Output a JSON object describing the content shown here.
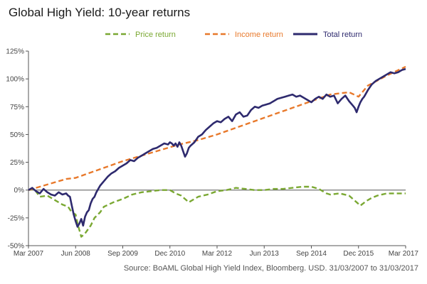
{
  "chart_data": {
    "type": "line",
    "title": "Global High Yield: 10-year returns",
    "source": "Source: BoAML Global High Yield Index, Bloomberg.  USD. 31/03/2007 to 31/03/2017",
    "xlim": [
      0,
      10
    ],
    "ylim": [
      -50,
      125
    ],
    "x_ticks": [
      {
        "x": 0,
        "label": "Mar 2007"
      },
      {
        "x": 1.25,
        "label": "Jun 2008"
      },
      {
        "x": 2.5,
        "label": "Sep 2009"
      },
      {
        "x": 3.75,
        "label": "Dec 2010"
      },
      {
        "x": 5,
        "label": "Mar 2012"
      },
      {
        "x": 6.25,
        "label": "Jun 2013"
      },
      {
        "x": 7.5,
        "label": "Sep 2014"
      },
      {
        "x": 8.75,
        "label": "Dec 2015"
      },
      {
        "x": 10,
        "label": "Mar 2017"
      }
    ],
    "y_ticks": [
      {
        "y": 125,
        "label": "125%"
      },
      {
        "y": 100,
        "label": "100%"
      },
      {
        "y": 75,
        "label": "75%"
      },
      {
        "y": 50,
        "label": "50%"
      },
      {
        "y": 25,
        "label": "25%"
      },
      {
        "y": 0,
        "label": "0%"
      },
      {
        "y": -25,
        "label": "-25%"
      },
      {
        "y": -50,
        "label": "-50%"
      }
    ],
    "zero_line": true,
    "grid": false,
    "legend_position": "top",
    "series": [
      {
        "name": "Price return",
        "color": "#7aa832",
        "style": "dashed",
        "x": [
          0,
          0.15,
          0.3,
          0.5,
          0.7,
          0.9,
          1.05,
          1.15,
          1.25,
          1.3,
          1.4,
          1.5,
          1.65,
          1.75,
          1.9,
          2.0,
          2.25,
          2.5,
          2.75,
          3.0,
          3.25,
          3.5,
          3.75,
          3.9,
          4.05,
          4.25,
          4.5,
          4.75,
          5.0,
          5.25,
          5.5,
          5.75,
          6.0,
          6.25,
          6.5,
          6.75,
          7.0,
          7.25,
          7.5,
          7.7,
          7.9,
          8.0,
          8.25,
          8.5,
          8.7,
          8.8,
          8.95,
          9.1,
          9.25,
          9.5,
          9.75,
          10.0
        ],
        "y": [
          0,
          1,
          -6,
          -5,
          -9,
          -13,
          -15,
          -20,
          -22,
          -30,
          -42,
          -39,
          -32,
          -25,
          -20,
          -15,
          -11,
          -8,
          -4,
          -2,
          -1,
          0,
          0,
          -3,
          -5,
          -11,
          -6,
          -4,
          -1,
          0,
          2,
          1,
          0,
          0,
          1,
          1,
          2,
          3,
          3,
          1,
          -3,
          -4,
          -3,
          -5,
          -11,
          -14,
          -10,
          -7,
          -5,
          -3,
          -3,
          -3
        ]
      },
      {
        "name": "Income return",
        "color": "#e8792b",
        "style": "dashed",
        "x": [
          0,
          0.5,
          1.0,
          1.25,
          1.5,
          2.0,
          2.5,
          3.0,
          3.5,
          4.0,
          4.5,
          5.0,
          5.5,
          6.0,
          6.5,
          7.0,
          7.5,
          8.0,
          8.5,
          8.75,
          9.0,
          9.5,
          10.0
        ],
        "y": [
          0,
          5,
          10,
          11,
          14,
          20,
          26,
          31,
          36,
          41,
          45,
          50,
          56,
          62,
          68,
          74,
          80,
          86,
          88,
          84,
          94,
          103,
          111
        ]
      },
      {
        "name": "Total return",
        "color": "#2e2a6e",
        "style": "solid",
        "x": [
          0,
          0.1,
          0.2,
          0.3,
          0.4,
          0.5,
          0.6,
          0.7,
          0.8,
          0.9,
          1.0,
          1.05,
          1.1,
          1.15,
          1.2,
          1.25,
          1.3,
          1.35,
          1.4,
          1.45,
          1.5,
          1.55,
          1.6,
          1.65,
          1.7,
          1.75,
          1.8,
          1.9,
          2.0,
          2.1,
          2.2,
          2.3,
          2.4,
          2.5,
          2.6,
          2.7,
          2.8,
          2.9,
          3.0,
          3.1,
          3.2,
          3.3,
          3.4,
          3.5,
          3.6,
          3.7,
          3.75,
          3.8,
          3.85,
          3.9,
          3.95,
          4.0,
          4.05,
          4.1,
          4.15,
          4.2,
          4.25,
          4.3,
          4.4,
          4.5,
          4.6,
          4.7,
          4.8,
          4.9,
          5.0,
          5.1,
          5.2,
          5.3,
          5.4,
          5.5,
          5.6,
          5.7,
          5.8,
          5.9,
          6.0,
          6.1,
          6.2,
          6.3,
          6.4,
          6.5,
          6.6,
          6.7,
          6.8,
          6.9,
          7.0,
          7.1,
          7.2,
          7.3,
          7.4,
          7.5,
          7.6,
          7.7,
          7.8,
          7.9,
          8.0,
          8.1,
          8.2,
          8.3,
          8.4,
          8.5,
          8.6,
          8.65,
          8.7,
          8.75,
          8.8,
          8.85,
          8.9,
          9.0,
          9.1,
          9.2,
          9.3,
          9.4,
          9.5,
          9.6,
          9.7,
          9.8,
          9.9,
          10.0
        ],
        "y": [
          0,
          2,
          -1,
          -3,
          1,
          -2,
          -4,
          -5,
          -2,
          -4,
          -3,
          -5,
          -6,
          -14,
          -22,
          -28,
          -33,
          -30,
          -26,
          -32,
          -24,
          -20,
          -18,
          -12,
          -8,
          -6,
          -2,
          4,
          8,
          12,
          15,
          17,
          20,
          22,
          24,
          27,
          26,
          29,
          31,
          33,
          35,
          37,
          38,
          40,
          42,
          41,
          43,
          42,
          40,
          42,
          39,
          43,
          40,
          35,
          30,
          33,
          38,
          40,
          43,
          48,
          50,
          54,
          57,
          60,
          62,
          61,
          64,
          66,
          62,
          68,
          70,
          66,
          67,
          72,
          75,
          74,
          76,
          77,
          78,
          80,
          82,
          83,
          84,
          85,
          86,
          84,
          85,
          83,
          81,
          79,
          82,
          84,
          82,
          86,
          84,
          85,
          78,
          82,
          85,
          80,
          76,
          74,
          70,
          75,
          79,
          82,
          84,
          90,
          95,
          98,
          100,
          102,
          104,
          106,
          105,
          106,
          108,
          109
        ]
      }
    ]
  }
}
